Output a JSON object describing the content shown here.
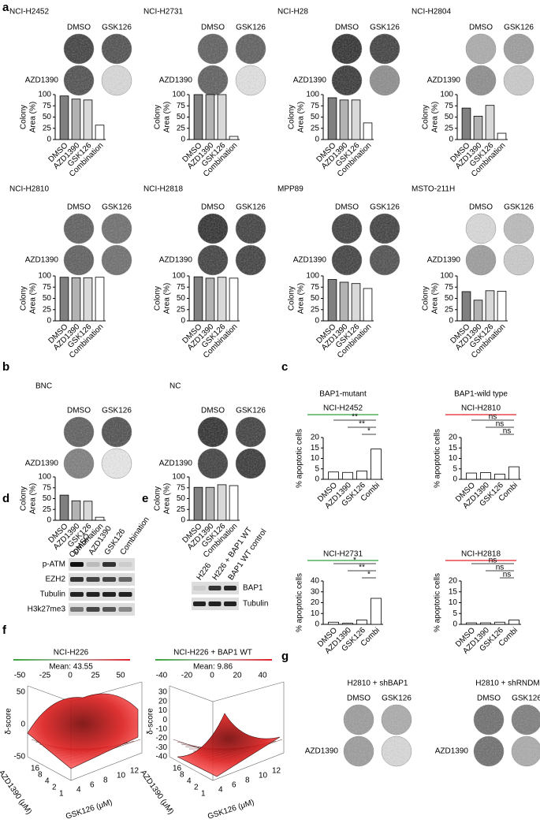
{
  "panels": [
    "a",
    "b",
    "c",
    "d",
    "e",
    "f",
    "g"
  ],
  "chart_data": [
    {
      "type": "bar",
      "title": "NCI-H2452",
      "title_color": "#2ca53a",
      "plate_columns": [
        "DMSO",
        "GSK126"
      ],
      "plate_row": "AZD1390",
      "y_label": [
        "Colony",
        "Area (%)"
      ],
      "categories": [
        "DMSO",
        "AZD1390",
        "GSK126",
        "Combination"
      ],
      "values": [
        97,
        90,
        88,
        32
      ],
      "colors": [
        "#808080",
        "#b3b3b3",
        "#d9d9d9",
        "#ffffff"
      ],
      "ylim": [
        0,
        100
      ],
      "yticks": [
        0,
        25,
        50,
        75,
        100
      ]
    },
    {
      "type": "bar",
      "title": "NCI-H2731",
      "title_color": "#2ca53a",
      "plate_columns": [
        "DMSO",
        "GSK126"
      ],
      "plate_row": "AZD1390",
      "y_label": [
        "Colony",
        "Area (%)"
      ],
      "categories": [
        "DMSO",
        "AZD1390",
        "GSK126",
        "Combination"
      ],
      "values": [
        100,
        100,
        100,
        7
      ],
      "colors": [
        "#808080",
        "#b3b3b3",
        "#d9d9d9",
        "#ffffff"
      ],
      "ylim": [
        0,
        100
      ],
      "yticks": [
        0,
        25,
        50,
        75,
        100
      ]
    },
    {
      "type": "bar",
      "title": "NCI-H28",
      "title_color": "#2ca53a",
      "plate_columns": [
        "DMSO",
        "GSK126"
      ],
      "plate_row": "AZD1390",
      "y_label": [
        "Colony",
        "Area (%)"
      ],
      "categories": [
        "DMSO",
        "AZD1390",
        "GSK126",
        "Combination"
      ],
      "values": [
        93,
        88,
        88,
        37
      ],
      "colors": [
        "#808080",
        "#b3b3b3",
        "#d9d9d9",
        "#ffffff"
      ],
      "ylim": [
        0,
        100
      ],
      "yticks": [
        0,
        25,
        50,
        75,
        100
      ]
    },
    {
      "type": "bar",
      "title": "NCI-H2804",
      "title_color": "#2ca53a",
      "plate_columns": [
        "DMSO",
        "GSK126"
      ],
      "plate_row": "AZD1390",
      "y_label": [
        "Colony",
        "Area (%)"
      ],
      "categories": [
        "DMSO",
        "AZD1390",
        "GSK126",
        "Combination"
      ],
      "values": [
        70,
        52,
        76,
        14
      ],
      "colors": [
        "#808080",
        "#b3b3b3",
        "#d9d9d9",
        "#ffffff"
      ],
      "ylim": [
        0,
        100
      ],
      "yticks": [
        0,
        25,
        50,
        75,
        100
      ]
    },
    {
      "type": "bar",
      "title": "NCI-H2810",
      "title_color": "#e3202a",
      "plate_columns": [
        "DMSO",
        "GSK126"
      ],
      "plate_row": "AZD1390",
      "y_label": [
        "Colony",
        "Area (%)"
      ],
      "categories": [
        "DMSO",
        "AZD1390",
        "GSK126",
        "Combination"
      ],
      "values": [
        97,
        96,
        96,
        97
      ],
      "colors": [
        "#808080",
        "#b3b3b3",
        "#d9d9d9",
        "#ffffff"
      ],
      "ylim": [
        0,
        100
      ],
      "yticks": [
        0,
        25,
        50,
        75,
        100
      ]
    },
    {
      "type": "bar",
      "title": "NCI-H2818",
      "title_color": "#e3202a",
      "plate_columns": [
        "DMSO",
        "GSK126"
      ],
      "plate_row": "AZD1390",
      "y_label": [
        "Colony",
        "Area (%)"
      ],
      "categories": [
        "DMSO",
        "AZD1390",
        "GSK126",
        "Combination"
      ],
      "values": [
        98,
        95,
        97,
        95
      ],
      "colors": [
        "#808080",
        "#b3b3b3",
        "#d9d9d9",
        "#ffffff"
      ],
      "ylim": [
        0,
        100
      ],
      "yticks": [
        0,
        25,
        50,
        75,
        100
      ]
    },
    {
      "type": "bar",
      "title": "MPP89",
      "title_color": "#e3202a",
      "plate_columns": [
        "DMSO",
        "GSK126"
      ],
      "plate_row": "AZD1390",
      "y_label": [
        "Colony",
        "Area (%)"
      ],
      "categories": [
        "DMSO",
        "AZD1390",
        "GSK126",
        "Combination"
      ],
      "values": [
        92,
        86,
        83,
        72
      ],
      "colors": [
        "#808080",
        "#b3b3b3",
        "#d9d9d9",
        "#ffffff"
      ],
      "ylim": [
        0,
        100
      ],
      "yticks": [
        0,
        25,
        50,
        75,
        100
      ]
    },
    {
      "type": "bar",
      "title": "MSTO-211H",
      "title_color": "#e3202a",
      "plate_columns": [
        "DMSO",
        "GSK126"
      ],
      "plate_row": "AZD1390",
      "y_label": [
        "Colony",
        "Area (%)"
      ],
      "categories": [
        "DMSO",
        "AZD1390",
        "GSK126",
        "Combination"
      ],
      "values": [
        65,
        46,
        67,
        66
      ],
      "colors": [
        "#808080",
        "#b3b3b3",
        "#d9d9d9",
        "#ffffff"
      ],
      "ylim": [
        0,
        100
      ],
      "yticks": [
        0,
        25,
        50,
        75,
        100
      ]
    },
    {
      "type": "bar",
      "title": "BNC",
      "title_color": "#2ca53a",
      "plate_columns": [
        "DMSO",
        "GSK126"
      ],
      "plate_row": "AZD1390",
      "y_label": [
        "Colony",
        "Area (%)"
      ],
      "categories": [
        "DMSO",
        "AZD1390",
        "GSK126",
        "Combination"
      ],
      "values": [
        58,
        45,
        44,
        7
      ],
      "colors": [
        "#808080",
        "#b3b3b3",
        "#d9d9d9",
        "#ffffff"
      ],
      "ylim": [
        0,
        100
      ],
      "yticks": [
        0,
        25,
        50,
        75,
        100
      ]
    },
    {
      "type": "bar",
      "title": "NC",
      "title_color": "#e3202a",
      "plate_columns": [
        "DMSO",
        "GSK126"
      ],
      "plate_row": "AZD1390",
      "y_label": [
        "Colony",
        "Area (%)"
      ],
      "categories": [
        "DMSO",
        "AZD1390",
        "GSK126",
        "Combination"
      ],
      "values": [
        76,
        76,
        82,
        80
      ],
      "colors": [
        "#808080",
        "#b3b3b3",
        "#d9d9d9",
        "#ffffff"
      ],
      "ylim": [
        0,
        100
      ],
      "yticks": [
        0,
        25,
        50,
        75,
        100
      ]
    },
    {
      "type": "bar",
      "subtitle": "BAP1-mutant",
      "title": "NCI-H2452",
      "title_color": "#2ca53a",
      "y_label": [
        "% apoptotic cells"
      ],
      "categories": [
        "DMSO",
        "AZD1390",
        "GSK126",
        "Combi"
      ],
      "values": [
        3.5,
        3.3,
        4,
        14.5
      ],
      "colors": [
        "#ffffff",
        "#ffffff",
        "#ffffff",
        "#ffffff"
      ],
      "ylim": [
        0,
        20
      ],
      "yticks": [
        0,
        5,
        10,
        15,
        20
      ],
      "annotations": [
        "**",
        "**",
        "*"
      ]
    },
    {
      "type": "bar",
      "subtitle": "BAP1-wild type",
      "title": "NCI-H2810",
      "title_color": "#e3202a",
      "y_label": [
        "% apoptotic cells"
      ],
      "categories": [
        "DMSO",
        "AZD1390",
        "GSK126",
        "Combi"
      ],
      "values": [
        3,
        3.2,
        2.5,
        6
      ],
      "colors": [
        "#ffffff",
        "#ffffff",
        "#ffffff",
        "#ffffff"
      ],
      "ylim": [
        0,
        20
      ],
      "yticks": [
        0,
        5,
        10,
        15,
        20
      ],
      "annotations": [
        "ns",
        "ns",
        "ns"
      ]
    },
    {
      "type": "bar",
      "title": "NCI-H2731",
      "title_color": "#2ca53a",
      "y_label": [
        "% apoptotic cells"
      ],
      "categories": [
        "DMSO",
        "AZD1390",
        "GSK126",
        "Combi"
      ],
      "values": [
        2,
        1,
        4,
        24
      ],
      "colors": [
        "#ffffff",
        "#ffffff",
        "#ffffff",
        "#ffffff"
      ],
      "ylim": [
        0,
        40
      ],
      "yticks": [
        0,
        10,
        20,
        30,
        40
      ],
      "annotations": [
        "*",
        "**",
        "*"
      ]
    },
    {
      "type": "bar",
      "title": "NCI-H2818",
      "title_color": "#e3202a",
      "y_label": [
        "% apoptotic cells"
      ],
      "categories": [
        "DMSO",
        "AZD1390",
        "GSK126",
        "Combi"
      ],
      "values": [
        0.7,
        0.7,
        1,
        2
      ],
      "colors": [
        "#ffffff",
        "#ffffff",
        "#ffffff",
        "#ffffff"
      ],
      "ylim": [
        0,
        20
      ],
      "yticks": [
        0,
        5,
        10,
        15,
        20
      ],
      "annotations": [
        "ns",
        "ns",
        "ns"
      ]
    }
  ],
  "blot_d": {
    "columns": [
      "DMSO",
      "AZD1390",
      "GSK126",
      "Combination"
    ],
    "rows": [
      "p-ATM",
      "EZH2",
      "Tubulin",
      "H3k27me3"
    ]
  },
  "blot_e": {
    "columns": [
      "H226",
      "H226 + BAP1 WT",
      "BAP1 WT control"
    ],
    "rows": [
      "BAP1",
      "Tubulin"
    ]
  },
  "panel_f": [
    {
      "title": "NCI-H226",
      "mean": "Mean: 43.55",
      "scale_ticks": [
        "-50",
        "-25",
        "0",
        "25",
        "50"
      ],
      "z_label": "δ-score",
      "z_ticks": [
        "50",
        "0",
        "-50"
      ],
      "y_label": "AZD1390 (μM)",
      "y_ticks": [
        "16",
        "8",
        "4",
        "2",
        "1"
      ],
      "x_label": "GSK126 (μM)",
      "x_ticks": [
        "4",
        "6",
        "8",
        "10",
        "12"
      ]
    },
    {
      "title": "NCI-H226 + BAP1 WT",
      "mean": "Mean: 9.86",
      "scale_ticks": [
        "-40",
        "-20",
        "0",
        "20",
        "40"
      ],
      "z_label": "δ-score",
      "z_ticks": [
        "30",
        "20",
        "10",
        "0",
        "-10",
        "-20",
        "-30",
        "-40"
      ],
      "y_label": "AZD1390 (μM)",
      "y_ticks": [
        "16",
        "8",
        "4",
        "2",
        "1"
      ],
      "x_label": "GSK126 (μM)",
      "x_ticks": [
        "4",
        "6",
        "8",
        "10",
        "12"
      ]
    }
  ],
  "panel_g": [
    {
      "title": "H2810 + shBAP1",
      "title_color": "#2ca53a",
      "columns": [
        "DMSO",
        "GSK126"
      ],
      "row": "AZD1390"
    },
    {
      "title": "H2810 + shRNDM",
      "title_color": "#e3202a",
      "columns": [
        "DMSO",
        "GSK126"
      ],
      "row": "AZD1390"
    }
  ]
}
